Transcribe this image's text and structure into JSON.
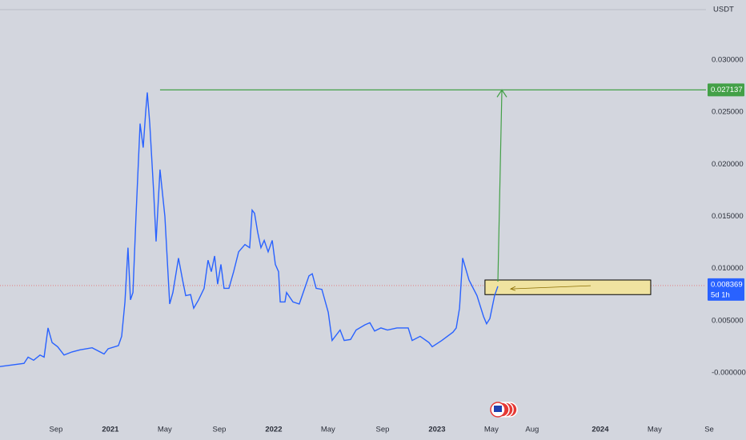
{
  "chart_data": {
    "type": "line",
    "currency": "USDT",
    "x": [
      2020.324,
      2020.471,
      2020.496,
      2020.53,
      2020.569,
      2020.594,
      2020.618,
      2020.643,
      2020.677,
      2020.716,
      2020.765,
      2020.814,
      2020.888,
      2020.961,
      2020.986,
      2021.049,
      2021.069,
      2021.089,
      2021.108,
      2021.123,
      2021.138,
      2021.157,
      2021.182,
      2021.201,
      2021.216,
      2021.226,
      2021.241,
      2021.265,
      2021.28,
      2021.304,
      2021.334,
      2021.363,
      2021.383,
      2021.417,
      2021.442,
      2021.461,
      2021.491,
      2021.51,
      2021.54,
      2021.574,
      2021.598,
      2021.618,
      2021.638,
      2021.657,
      2021.677,
      2021.696,
      2021.726,
      2021.755,
      2021.785,
      2021.824,
      2021.853,
      2021.868,
      2021.883,
      2021.902,
      2021.922,
      2021.942,
      2021.966,
      2021.991,
      2022.01,
      2022.03,
      2022.04,
      2022.069,
      2022.079,
      2022.118,
      2022.157,
      2022.216,
      2022.236,
      2022.26,
      2022.295,
      2022.334,
      2022.358,
      2022.407,
      2022.432,
      2022.471,
      2022.505,
      2022.559,
      2022.589,
      2022.618,
      2022.657,
      2022.697,
      2022.755,
      2022.824,
      2022.848,
      2022.897,
      2022.951,
      2022.971,
      2023.03,
      2023.098,
      2023.118,
      2023.138,
      2023.157,
      2023.196,
      2023.245,
      2023.285,
      2023.304,
      2023.324,
      2023.353,
      2023.373
    ],
    "series": [
      {
        "color": "#2962ff",
        "values": [
          0.0006,
          0.0009,
          0.0015,
          0.0012,
          0.0017,
          0.0015,
          0.0043,
          0.0029,
          0.0025,
          0.0017,
          0.002,
          0.0022,
          0.0024,
          0.0018,
          0.0023,
          0.0026,
          0.0035,
          0.0068,
          0.012,
          0.007,
          0.0077,
          0.015,
          0.0239,
          0.0216,
          0.025,
          0.0269,
          0.0239,
          0.0173,
          0.0126,
          0.0195,
          0.015,
          0.0066,
          0.0077,
          0.011,
          0.0089,
          0.0074,
          0.0075,
          0.0062,
          0.007,
          0.0081,
          0.0108,
          0.0097,
          0.0112,
          0.0085,
          0.0104,
          0.0081,
          0.0081,
          0.0097,
          0.0116,
          0.0123,
          0.012,
          0.0156,
          0.0153,
          0.0135,
          0.012,
          0.0127,
          0.0116,
          0.0127,
          0.0104,
          0.0097,
          0.0068,
          0.0068,
          0.0077,
          0.0068,
          0.0066,
          0.0093,
          0.0095,
          0.0081,
          0.008,
          0.0058,
          0.0031,
          0.0041,
          0.0031,
          0.0032,
          0.0041,
          0.0046,
          0.0048,
          0.004,
          0.0043,
          0.0041,
          0.0043,
          0.0043,
          0.0031,
          0.0035,
          0.0029,
          0.0025,
          0.0031,
          0.0039,
          0.0043,
          0.0062,
          0.011,
          0.0089,
          0.0074,
          0.0054,
          0.0047,
          0.0052,
          0.0074,
          0.0083
        ]
      }
    ],
    "xlim": [
      2020.324,
      2024.667
    ],
    "ylim": [
      -0.00453,
      0.03576
    ],
    "xticks": [
      {
        "value": 2020.667,
        "label": "Sep"
      },
      2021,
      {
        "value": 2021.333,
        "label": "May"
      },
      {
        "value": 2021.667,
        "label": "Sep"
      },
      2022,
      {
        "value": 2022.333,
        "label": "May"
      },
      {
        "value": 2022.667,
        "label": "Sep"
      },
      2023,
      {
        "value": 2023.333,
        "label": "May"
      },
      {
        "value": 2023.583,
        "label": "Aug"
      },
      2024,
      {
        "value": 2024.333,
        "label": "May"
      },
      {
        "value": 2024.667,
        "label": "Se"
      }
    ],
    "yticks": [
      {
        "value": 0.03,
        "label": "0.030000"
      },
      {
        "value": 0.025,
        "label": "0.025000"
      },
      {
        "value": 0.02,
        "label": "0.020000"
      },
      {
        "value": 0.015,
        "label": "0.015000"
      },
      {
        "value": 0.01,
        "label": "0.010000"
      },
      {
        "value": 0.005,
        "label": "0.005000"
      },
      {
        "value": 0,
        "label": "-0.000000"
      }
    ],
    "target": {
      "value": 0.027137,
      "x_start": 2021.304,
      "color": "#43a047"
    },
    "last_price": {
      "value": 0.008369,
      "countdown": "5d 1h",
      "color": "#2962ff"
    },
    "zone": {
      "x": [
        2023.294,
        2024.309
      ],
      "y": [
        0.0075,
        0.0089
      ],
      "color": "#f0e3a0"
    }
  }
}
